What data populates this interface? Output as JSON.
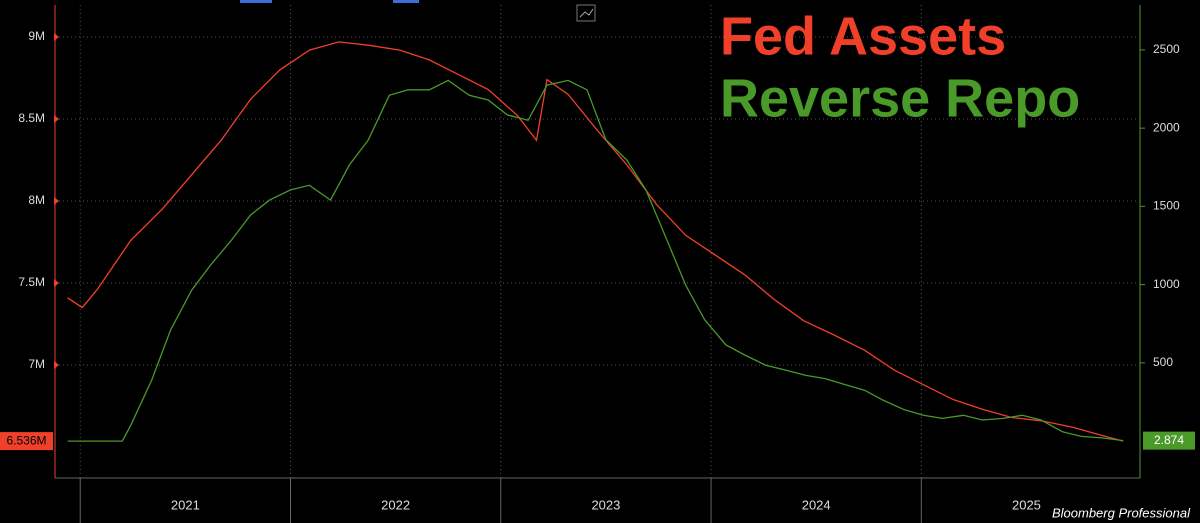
{
  "chart_data": {
    "type": "line",
    "watermark": "Bloomberg Professional",
    "xlim": [
      2020.88,
      2026.04
    ],
    "xticks": [
      2021,
      2022,
      2023,
      2024,
      2025
    ],
    "ylim": [
      6311000,
      9195000
    ],
    "yticks": [
      {
        "value": 7000000,
        "label": "7M"
      },
      {
        "value": 7500000,
        "label": "7.5M"
      },
      {
        "value": 8000000,
        "label": "8M"
      },
      {
        "value": 8500000,
        "label": "8.5M"
      },
      {
        "value": 9000000,
        "label": "9M"
      }
    ],
    "y2lim": [
      -236,
      2787
    ],
    "y2ticks": [
      500,
      1000,
      1500,
      2000,
      2500
    ],
    "grid": true,
    "legend": "top-right",
    "series": [
      {
        "name": "Fed Assets",
        "color": "#f0402a",
        "axis": "y",
        "x": [
          2020.94,
          2021.01,
          2021.08,
          2021.15,
          2021.24,
          2021.39,
          2021.53,
          2021.67,
          2021.81,
          2021.95,
          2022.09,
          2022.23,
          2022.37,
          2022.52,
          2022.66,
          2022.8,
          2022.94,
          2023.08,
          2023.17,
          2023.22,
          2023.32,
          2023.46,
          2023.6,
          2023.74,
          2023.88,
          2024.02,
          2024.16,
          2024.3,
          2024.44,
          2024.59,
          2024.73,
          2024.87,
          2025.01,
          2025.15,
          2025.29,
          2025.43,
          2025.57,
          2025.72,
          2025.86,
          2025.96
        ],
        "values": [
          7410000,
          7350000,
          7460000,
          7590000,
          7760000,
          7950000,
          8160000,
          8370000,
          8620000,
          8800000,
          8920000,
          8970000,
          8950000,
          8920000,
          8860000,
          8770000,
          8680000,
          8520000,
          8370000,
          8740000,
          8650000,
          8430000,
          8220000,
          7980000,
          7790000,
          7670000,
          7550000,
          7400000,
          7270000,
          7180000,
          7090000,
          6970000,
          6880000,
          6790000,
          6730000,
          6680000,
          6660000,
          6620000,
          6570000,
          6536000
        ],
        "value_labels": [
          null,
          null,
          null,
          null,
          null,
          null,
          null,
          null,
          null,
          null,
          null,
          null,
          null,
          null,
          null,
          null,
          null,
          null,
          null,
          null,
          null,
          null,
          null,
          null,
          null,
          null,
          null,
          null,
          null,
          null,
          null,
          null,
          null,
          null,
          null,
          null,
          null,
          null,
          null,
          "6.536M"
        ]
      },
      {
        "name": "Reverse Repo",
        "color": "#4a9a2a",
        "axis": "y2",
        "x": [
          2020.94,
          2021.2,
          2021.24,
          2021.34,
          2021.43,
          2021.53,
          2021.62,
          2021.72,
          2021.81,
          2021.9,
          2022.0,
          2022.09,
          2022.19,
          2022.28,
          2022.37,
          2022.47,
          2022.56,
          2022.66,
          2022.75,
          2022.85,
          2022.94,
          2023.03,
          2023.13,
          2023.22,
          2023.32,
          2023.41,
          2023.5,
          2023.6,
          2023.69,
          2023.79,
          2023.88,
          2023.97,
          2024.07,
          2024.16,
          2024.26,
          2024.35,
          2024.45,
          2024.54,
          2024.64,
          2024.73,
          2024.82,
          2024.92,
          2025.01,
          2025.1,
          2025.2,
          2025.29,
          2025.39,
          2025.48,
          2025.57,
          2025.67,
          2025.76,
          2025.86,
          2025.96
        ],
        "values": [
          0,
          0,
          100,
          390,
          710,
          965,
          1125,
          1285,
          1445,
          1540,
          1605,
          1635,
          1540,
          1765,
          1925,
          2210,
          2245,
          2245,
          2305,
          2210,
          2180,
          2085,
          2050,
          2275,
          2305,
          2245,
          1925,
          1795,
          1605,
          1285,
          995,
          775,
          615,
          550,
          485,
          455,
          420,
          400,
          360,
          325,
          260,
          200,
          165,
          145,
          165,
          135,
          145,
          165,
          135,
          60,
          30,
          20,
          2.874
        ],
        "value_labels": [
          null,
          null,
          null,
          null,
          null,
          null,
          null,
          null,
          null,
          null,
          null,
          null,
          null,
          null,
          null,
          null,
          null,
          null,
          null,
          null,
          null,
          null,
          null,
          null,
          null,
          null,
          null,
          null,
          null,
          null,
          null,
          null,
          null,
          null,
          null,
          null,
          null,
          null,
          null,
          null,
          null,
          null,
          null,
          null,
          null,
          null,
          null,
          null,
          null,
          null,
          null,
          null,
          "2.874"
        ]
      }
    ]
  }
}
